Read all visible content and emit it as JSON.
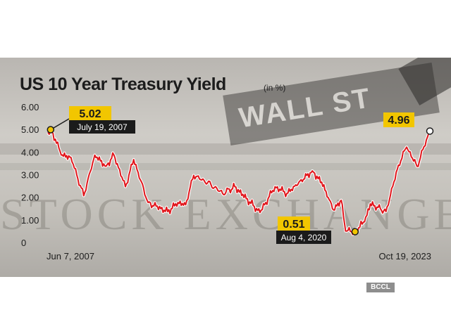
{
  "title": "US 10 Year Treasury Yield",
  "unit_note": "(in %)",
  "credit": "BCCL",
  "background_words": {
    "sign": "WALL ST",
    "carving": "STOCK EXCHANGE"
  },
  "colors": {
    "line": "#e1161c",
    "callout_value_bg": "#f2c600",
    "callout_date_bg": "#1b1b1b",
    "marker_fill": "#f2c600"
  },
  "chart_data": {
    "type": "line",
    "title": "US 10 Year Treasury Yield",
    "ylabel": "(in %)",
    "ylim": [
      0,
      6
    ],
    "yticks": [
      "6.00",
      "5.00",
      "4.00",
      "3.00",
      "2.00",
      "1.00",
      "0"
    ],
    "x_start_label": "Jun 7, 2007",
    "x_end_label": "Oct 19, 2023",
    "grid": false,
    "legend": "none",
    "series": [
      {
        "x": [
          "2007-06-07",
          "2007-07-19",
          "2007-10-01",
          "2008-01-01",
          "2008-06-01",
          "2008-12-18",
          "2009-06-10",
          "2009-12-01",
          "2010-04-05",
          "2010-10-01",
          "2011-02-08",
          "2011-09-22",
          "2012-07-24",
          "2013-01-01",
          "2013-05-01",
          "2013-09-05",
          "2014-06-01",
          "2014-12-01",
          "2015-06-10",
          "2016-07-08",
          "2017-03-01",
          "2017-09-01",
          "2018-10-05",
          "2019-03-01",
          "2019-09-03",
          "2020-01-01",
          "2020-03-09",
          "2020-08-04",
          "2021-01-01",
          "2021-03-31",
          "2021-12-01",
          "2022-06-14",
          "2022-10-21",
          "2023-04-01",
          "2023-10-19"
        ],
        "y": [
          4.9,
          5.02,
          4.6,
          3.9,
          3.8,
          2.1,
          3.9,
          3.4,
          3.9,
          2.5,
          3.7,
          1.8,
          1.4,
          1.8,
          1.7,
          3.0,
          2.6,
          2.2,
          2.5,
          1.36,
          2.5,
          2.2,
          3.2,
          2.7,
          1.47,
          1.9,
          0.54,
          0.51,
          0.95,
          1.74,
          1.4,
          3.45,
          4.25,
          3.4,
          4.96
        ]
      }
    ],
    "annotations": [
      {
        "value": "5.02",
        "date": "July 19, 2007"
      },
      {
        "value": "0.51",
        "date": "Aug 4, 2020"
      },
      {
        "value": "4.96",
        "date": "Oct 19, 2023"
      }
    ]
  }
}
